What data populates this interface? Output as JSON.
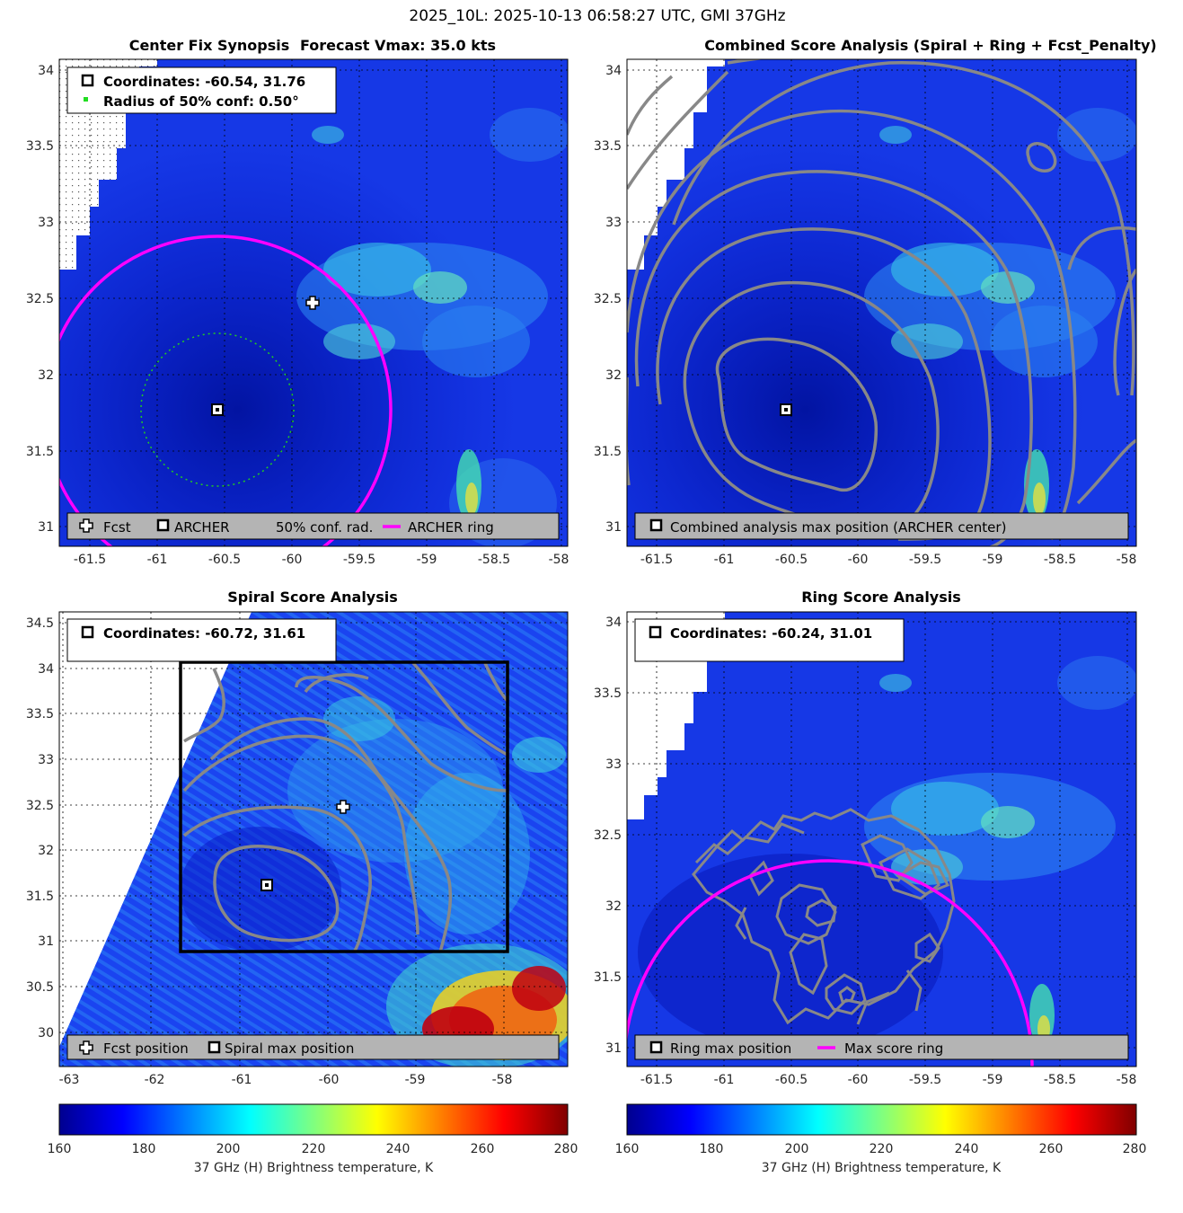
{
  "figure_title": "2025_10L: 2025-10-13 06:58:27 UTC, GMI 37GHz",
  "colors": {
    "archer_ring": "#ff00ff",
    "conf_circle": "#22cc22",
    "contour": "#888888",
    "legend_bg": "#b4b4b4",
    "colormap": "jet"
  },
  "panels": {
    "synopsis": {
      "title_left": "Center Fix Synopsis",
      "title_right": "Forecast Vmax: 35.0 kts",
      "coord_line": "Coordinates: -60.54, 31.76",
      "radius_line": "Radius of 50% conf: 0.50°",
      "legend": {
        "fcst": "Fcst",
        "archer": "ARCHER",
        "conf": "50% conf. rad.",
        "ring": "ARCHER ring"
      }
    },
    "combined": {
      "title": "Combined Score Analysis (Spiral + Ring + Fcst_Penalty)",
      "legend": {
        "max": "Combined analysis max position (ARCHER center)"
      }
    },
    "spiral": {
      "title": "Spiral Score Analysis",
      "coord_line": "Coordinates: -60.72, 31.61",
      "legend": {
        "fcst": "Fcst position",
        "max": "Spiral max position"
      }
    },
    "ring": {
      "title": "Ring Score Analysis",
      "coord_line": "Coordinates: -60.24, 31.01",
      "legend": {
        "max": "Ring max position",
        "ring": "Max score ring"
      }
    }
  },
  "chart_data": [
    {
      "id": "synopsis",
      "type": "heatmap",
      "xlim": [
        -61.75,
        -57.98
      ],
      "ylim": [
        30.87,
        34.07
      ],
      "xticks": [
        -61.5,
        -61,
        -60.5,
        -60,
        -59.5,
        -59,
        -58.5,
        -58
      ],
      "yticks": [
        31,
        31.5,
        32,
        32.5,
        33,
        33.5,
        34
      ],
      "archer_center": [
        -60.54,
        31.76
      ],
      "forecast_position": [
        -59.84,
        32.47
      ],
      "conf_radius_deg": 0.5,
      "archer_ring_radius_deg": 1.1
    },
    {
      "id": "combined",
      "type": "heatmap",
      "xlim": [
        -61.75,
        -57.98
      ],
      "ylim": [
        30.87,
        34.07
      ],
      "xticks": [
        -61.5,
        -61,
        -60.5,
        -60,
        -59.5,
        -59,
        -58.5,
        -58
      ],
      "yticks": [
        31,
        31.5,
        32,
        32.5,
        33,
        33.5,
        34
      ],
      "max_position": [
        -60.54,
        31.76
      ]
    },
    {
      "id": "spiral",
      "type": "heatmap",
      "xlim": [
        -63.04,
        -57.27
      ],
      "ylim": [
        29.63,
        34.63
      ],
      "xticks": [
        -63,
        -62,
        -61,
        -60,
        -59,
        -58
      ],
      "yticks": [
        30,
        30.5,
        31,
        31.5,
        32,
        32.5,
        33,
        33.5,
        34,
        34.5
      ],
      "max_position": [
        -60.72,
        31.61
      ],
      "forecast_position": [
        -59.84,
        32.47
      ],
      "search_box": [
        [
          -61.69,
          30.87
        ],
        [
          -58.11,
          34.07
        ]
      ]
    },
    {
      "id": "ring",
      "type": "heatmap",
      "xlim": [
        -61.75,
        -57.98
      ],
      "ylim": [
        30.87,
        34.07
      ],
      "xticks": [
        -61.5,
        -61,
        -60.5,
        -60,
        -59.5,
        -59,
        -58.5,
        -58
      ],
      "yticks": [
        31,
        31.5,
        32,
        32.5,
        33,
        33.5,
        34
      ],
      "max_position": [
        -60.24,
        31.01
      ],
      "max_ring_radius_deg": 1.3
    }
  ],
  "colorbar": {
    "min": 160,
    "max": 280,
    "ticks": [
      160,
      180,
      200,
      220,
      240,
      260,
      280
    ],
    "label": "37 GHz (H) Brightness temperature, K"
  }
}
